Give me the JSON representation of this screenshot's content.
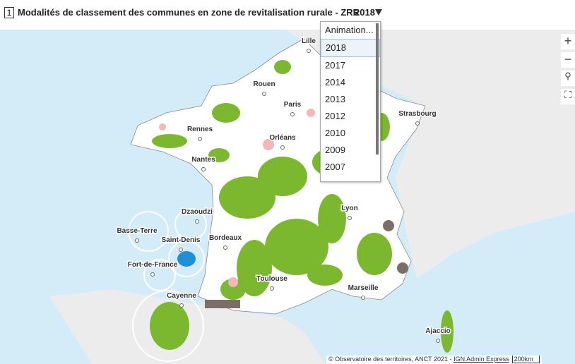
{
  "header": {
    "number": "1",
    "title": "Modalités de classement des communes en zone de revitalisation rurale - ZRR",
    "selected_year": "2018"
  },
  "dropdown": {
    "items": [
      "Animation...",
      "2018",
      "2017",
      "2014",
      "2013",
      "2012",
      "2010",
      "2009",
      "2007"
    ]
  },
  "map": {
    "cities": [
      "Lille",
      "Rouen",
      "Paris",
      "Strasbourg",
      "Rennes",
      "Orléans",
      "Nantes",
      "Lyon",
      "Dzaoudzi",
      "Basse-Terre",
      "Saint-Denis",
      "Bordeaux",
      "Fort-de-France",
      "Toulouse",
      "Marseille",
      "Cayenne",
      "Ajaccio"
    ]
  },
  "attribution": {
    "text": "© Observatoire des territoires, ANCT 2021 -",
    "link": "IGN Admin Express",
    "scale": "200km"
  }
}
